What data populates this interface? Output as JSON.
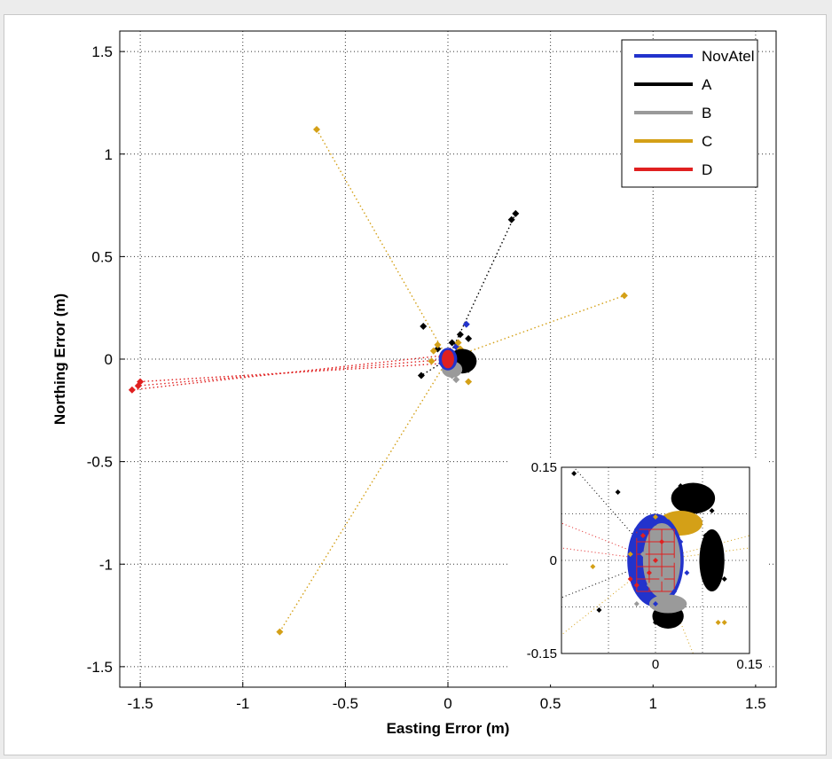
{
  "chart_data": [
    {
      "type": "scatter",
      "xlabel": "Easting Error (m)",
      "ylabel": "Northing Error (m)",
      "xlim": [
        -1.6,
        1.6
      ],
      "ylim": [
        -1.6,
        1.6
      ],
      "xticks": [
        "-1.5",
        "-1",
        "-0.5",
        "0",
        "0.5",
        "1",
        "1.5"
      ],
      "yticks": [
        "1.5",
        "1",
        "0.5",
        "0",
        "-0.5",
        "-1",
        "-1.5"
      ],
      "grid": true,
      "legend_position": "top-right",
      "series": [
        {
          "name": "NovAtel",
          "color": "#2233cc",
          "points": [
            [
              0.0,
              0.02
            ],
            [
              0.02,
              -0.04
            ],
            [
              -0.02,
              0.03
            ],
            [
              0.05,
              0.01
            ],
            [
              0.09,
              0.17
            ],
            [
              0.01,
              -0.05
            ],
            [
              -0.03,
              -0.02
            ],
            [
              0.04,
              0.06
            ],
            [
              0.06,
              -0.03
            ]
          ]
        },
        {
          "name": "A",
          "color": "#000000",
          "points": [
            [
              0.33,
              0.71
            ],
            [
              0.31,
              0.68
            ],
            [
              0.06,
              0.12
            ],
            [
              0.1,
              0.1
            ],
            [
              -0.12,
              0.16
            ],
            [
              -0.13,
              -0.08
            ],
            [
              0.1,
              -0.05
            ],
            [
              0.07,
              -0.03
            ],
            [
              0.02,
              0.08
            ],
            [
              0.09,
              0.02
            ],
            [
              -0.05,
              0.05
            ],
            [
              0.04,
              -0.06
            ],
            [
              0.12,
              -0.01
            ]
          ]
        },
        {
          "name": "B",
          "color": "#9a9a9a",
          "points": [
            [
              0.02,
              -0.08
            ],
            [
              0.04,
              -0.1
            ],
            [
              0.0,
              -0.06
            ],
            [
              0.03,
              0.0
            ],
            [
              -0.01,
              0.02
            ],
            [
              0.05,
              -0.02
            ]
          ]
        },
        {
          "name": "C",
          "color": "#d4a017",
          "points": [
            [
              -0.64,
              1.12
            ],
            [
              0.86,
              0.31
            ],
            [
              -0.82,
              -1.33
            ],
            [
              0.1,
              -0.11
            ],
            [
              -0.07,
              0.04
            ],
            [
              -0.08,
              -0.01
            ],
            [
              0.06,
              0.05
            ],
            [
              -0.05,
              0.07
            ],
            [
              0.05,
              0.08
            ]
          ]
        },
        {
          "name": "D",
          "color": "#e02020",
          "points": [
            [
              -1.54,
              -0.15
            ],
            [
              -1.51,
              -0.13
            ],
            [
              -1.5,
              -0.11
            ],
            [
              -0.02,
              0.0
            ],
            [
              0.0,
              0.02
            ],
            [
              0.02,
              -0.02
            ],
            [
              -0.01,
              -0.03
            ],
            [
              0.01,
              0.04
            ],
            [
              -0.03,
              0.01
            ]
          ]
        }
      ],
      "lines": [
        {
          "color": "#000000",
          "from": [
            0.0,
            0.0
          ],
          "to": [
            0.33,
            0.71
          ]
        },
        {
          "color": "#000000",
          "from": [
            0.0,
            0.0
          ],
          "to": [
            -0.13,
            -0.08
          ]
        },
        {
          "color": "#d4a017",
          "from": [
            0.0,
            0.0
          ],
          "to": [
            -0.64,
            1.12
          ]
        },
        {
          "color": "#d4a017",
          "from": [
            0.0,
            0.0
          ],
          "to": [
            0.86,
            0.31
          ]
        },
        {
          "color": "#d4a017",
          "from": [
            0.0,
            0.0
          ],
          "to": [
            -0.82,
            -1.33
          ]
        },
        {
          "color": "#e02020",
          "from": [
            0.0,
            0.0
          ],
          "to": [
            -1.51,
            -0.13
          ]
        },
        {
          "color": "#e02020",
          "from": [
            0.0,
            0.02
          ],
          "to": [
            -1.54,
            -0.15
          ]
        },
        {
          "color": "#e02020",
          "from": [
            0.0,
            -0.02
          ],
          "to": [
            -1.5,
            -0.11
          ]
        }
      ]
    },
    {
      "type": "scatter",
      "xlim": [
        -0.15,
        0.15
      ],
      "ylim": [
        -0.15,
        0.15
      ],
      "xticks": [
        "0",
        "0.15"
      ],
      "yticks": [
        "0.15",
        "0",
        "-0.15"
      ],
      "grid": true,
      "clusters": [
        {
          "series": "A",
          "color": "#000000",
          "points": [
            [
              0.05,
              0.1
            ],
            [
              0.06,
              0.09
            ],
            [
              0.07,
              0.11
            ],
            [
              0.08,
              0.1
            ],
            [
              0.04,
              0.12
            ],
            [
              0.09,
              0.08
            ],
            [
              0.08,
              0.04
            ],
            [
              0.09,
              0.0
            ],
            [
              0.1,
              -0.02
            ],
            [
              0.11,
              -0.03
            ],
            [
              0.02,
              -0.09
            ],
            [
              0.03,
              -0.1
            ],
            [
              0.0,
              -0.1
            ],
            [
              -0.09,
              -0.08
            ],
            [
              -0.13,
              0.14
            ],
            [
              -0.06,
              0.11
            ]
          ]
        },
        {
          "series": "NovAtel",
          "color": "#2233cc",
          "points": [
            [
              -0.03,
              0.05
            ],
            [
              -0.04,
              0.0
            ],
            [
              0.04,
              0.03
            ],
            [
              0.05,
              -0.02
            ],
            [
              0.0,
              -0.07
            ],
            [
              -0.02,
              -0.06
            ],
            [
              0.03,
              -0.05
            ],
            [
              -0.03,
              0.04
            ],
            [
              0.0,
              0.06
            ]
          ]
        },
        {
          "series": "B",
          "color": "#9a9a9a",
          "points": [
            [
              0.0,
              0.0
            ],
            [
              0.02,
              0.02
            ],
            [
              0.01,
              -0.03
            ],
            [
              -0.02,
              0.01
            ],
            [
              0.03,
              0.0
            ],
            [
              0.0,
              0.04
            ],
            [
              -0.01,
              -0.04
            ],
            [
              0.02,
              -0.06
            ],
            [
              -0.03,
              -0.07
            ]
          ]
        },
        {
          "series": "C",
          "color": "#d4a017",
          "points": [
            [
              0.02,
              0.07
            ],
            [
              0.04,
              0.06
            ],
            [
              0.0,
              0.07
            ],
            [
              -0.04,
              0.01
            ],
            [
              -0.1,
              -0.01
            ],
            [
              0.1,
              -0.1
            ],
            [
              0.11,
              -0.1
            ],
            [
              0.06,
              0.05
            ]
          ]
        },
        {
          "series": "D",
          "color": "#e02020",
          "points": [
            [
              -0.03,
              -0.04
            ],
            [
              -0.02,
              0.04
            ],
            [
              -0.04,
              -0.03
            ],
            [
              0.0,
              0.0
            ],
            [
              0.01,
              0.03
            ],
            [
              -0.01,
              -0.02
            ]
          ]
        }
      ]
    }
  ],
  "legend": [
    {
      "label": "NovAtel",
      "color": "#2233cc"
    },
    {
      "label": "A",
      "color": "#000000"
    },
    {
      "label": "B",
      "color": "#9a9a9a"
    },
    {
      "label": "C",
      "color": "#d4a017"
    },
    {
      "label": "D",
      "color": "#e02020"
    }
  ]
}
